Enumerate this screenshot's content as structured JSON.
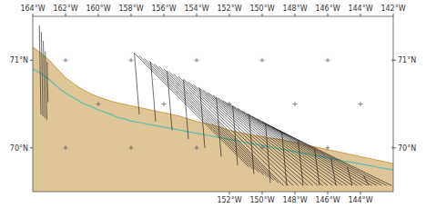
{
  "chart_data": {
    "type": "map",
    "xlim": [
      164.0,
      142.0
    ],
    "ylim": [
      69.5,
      71.5
    ],
    "xticks": [
      {
        "value": 152,
        "label": "152°W"
      },
      {
        "value": 150,
        "label": "150°W"
      },
      {
        "value": 148,
        "label": "148°W"
      },
      {
        "value": 146,
        "label": "146°W"
      },
      {
        "value": 144,
        "label": "144°W"
      }
    ],
    "x2ticks": [
      {
        "value": 164,
        "label": "164°W"
      },
      {
        "value": 162,
        "label": "162°W"
      },
      {
        "value": 160,
        "label": "160°W"
      },
      {
        "value": 158,
        "label": "158°W"
      },
      {
        "value": 156,
        "label": "156°W"
      },
      {
        "value": 154,
        "label": "154°W"
      },
      {
        "value": 152,
        "label": "152°W"
      },
      {
        "value": 150,
        "label": "150°W"
      },
      {
        "value": 148,
        "label": "148°W"
      },
      {
        "value": 146,
        "label": "146°W"
      },
      {
        "value": 144,
        "label": "144°W"
      },
      {
        "value": 142,
        "label": "142°W"
      }
    ],
    "yticks": [
      {
        "value": 70.0,
        "label": "70°N"
      },
      {
        "value": 71.0,
        "label": "71°N"
      }
    ],
    "series": [
      {
        "type": "area",
        "color": "#c8a050",
        "x": [
          164.0,
          163.5,
          163.0,
          162.5,
          162.0,
          161.5,
          161.0,
          160.5,
          160.0,
          159.5,
          159.0,
          158.5,
          158.0,
          157.5,
          157.0,
          156.5,
          156.0,
          155.5,
          155.0,
          154.5,
          154.0,
          153.5,
          153.0,
          152.5,
          152.0,
          151.5,
          151.0,
          150.5,
          150.0,
          149.5,
          149.0,
          148.5,
          148.0,
          147.5,
          147.0,
          146.5,
          146.0,
          145.5,
          145.0,
          144.5,
          144.0,
          143.5,
          143.0,
          142.5,
          142.0
        ],
        "values": [
          71.15,
          71.08,
          71.0,
          70.9,
          70.8,
          70.73,
          70.67,
          70.62,
          70.58,
          70.55,
          70.52,
          70.5,
          70.48,
          70.46,
          70.44,
          70.42,
          70.4,
          70.38,
          70.36,
          70.33,
          70.3,
          70.28,
          70.26,
          70.23,
          70.2,
          70.18,
          70.16,
          70.14,
          70.13,
          70.11,
          70.1,
          70.08,
          70.06,
          70.04,
          70.02,
          70.0,
          69.98,
          69.96,
          69.94,
          69.92,
          69.9,
          69.88,
          69.86,
          69.84,
          69.82
        ]
      },
      {
        "type": "line",
        "color": "#5bbfb0",
        "x": [
          164.0,
          163.5,
          163.0,
          162.7,
          162.4,
          162.1,
          161.8,
          161.5,
          161.2,
          161.0,
          160.7,
          160.4,
          160.1,
          159.8,
          159.5,
          159.2,
          159.0,
          158.7,
          158.4,
          158.1,
          157.8,
          157.5,
          157.2,
          157.0,
          156.7,
          156.4,
          156.1,
          155.8,
          155.5,
          155.2,
          155.0,
          154.7,
          154.4,
          154.1,
          153.8,
          153.5,
          153.2,
          153.0,
          152.7,
          152.4,
          152.1,
          151.8,
          151.5,
          151.2,
          151.0,
          150.7,
          150.4,
          150.1,
          149.8,
          149.5,
          149.2,
          149.0,
          148.7,
          148.4,
          148.1,
          147.8,
          147.5,
          147.2,
          147.0,
          146.7,
          146.4,
          146.1,
          145.8,
          145.5,
          145.2,
          145.0,
          144.7,
          144.4,
          144.1,
          143.8,
          143.5,
          143.2,
          143.0,
          142.7,
          142.4,
          142.1,
          142.0
        ],
        "values": [
          70.9,
          70.85,
          70.78,
          70.73,
          70.68,
          70.64,
          70.6,
          70.57,
          70.54,
          70.51,
          70.49,
          70.47,
          70.44,
          70.42,
          70.4,
          70.38,
          70.36,
          70.34,
          70.33,
          70.31,
          70.3,
          70.29,
          70.28,
          70.27,
          70.26,
          70.25,
          70.24,
          70.23,
          70.22,
          70.21,
          70.2,
          70.19,
          70.18,
          70.17,
          70.16,
          70.15,
          70.14,
          70.13,
          70.12,
          70.11,
          70.1,
          70.09,
          70.08,
          70.07,
          70.06,
          70.05,
          70.04,
          70.03,
          70.02,
          70.01,
          70.0,
          69.99,
          69.98,
          69.97,
          69.96,
          69.95,
          69.94,
          69.93,
          69.92,
          69.91,
          69.9,
          69.89,
          69.88,
          69.87,
          69.86,
          69.85,
          69.84,
          69.83,
          69.82,
          69.81,
          69.8,
          69.79,
          69.78,
          69.77,
          69.76,
          69.75,
          69.75
        ]
      },
      {
        "type": "line",
        "color": "#111111",
        "x": [
          163.6,
          163.5
        ],
        "values": [
          71.4,
          70.38
        ]
      },
      {
        "type": "line",
        "color": "#111111",
        "x": [
          163.48,
          163.38
        ],
        "values": [
          71.32,
          70.36
        ]
      },
      {
        "type": "line",
        "color": "#111111",
        "x": [
          163.36,
          163.26
        ],
        "values": [
          71.22,
          70.34
        ]
      },
      {
        "type": "line",
        "color": "#111111",
        "x": [
          163.24,
          163.14
        ],
        "values": [
          71.1,
          70.32
        ]
      },
      {
        "type": "line",
        "color": "#111111",
        "x": [
          163.12,
          163.07
        ],
        "values": [
          70.98,
          70.52
        ]
      },
      {
        "type": "line",
        "color": "#111111",
        "x": [
          157.8,
          150.8
        ],
        "values": [
          71.08,
          69.78
        ]
      },
      {
        "type": "line",
        "color": "#111111",
        "x": [
          157.5,
          150.5
        ],
        "values": [
          71.05,
          69.75
        ]
      },
      {
        "type": "line",
        "color": "#111111",
        "x": [
          157.2,
          150.2
        ],
        "values": [
          71.02,
          69.72
        ]
      },
      {
        "type": "line",
        "color": "#111111",
        "x": [
          156.9,
          149.9
        ],
        "values": [
          70.99,
          69.69
        ]
      },
      {
        "type": "line",
        "color": "#111111",
        "x": [
          156.6,
          149.6
        ],
        "values": [
          70.96,
          69.66
        ]
      },
      {
        "type": "line",
        "color": "#111111",
        "x": [
          156.3,
          149.3
        ],
        "values": [
          70.93,
          69.63
        ]
      },
      {
        "type": "line",
        "color": "#111111",
        "x": [
          156.0,
          149.0
        ],
        "values": [
          70.9,
          69.6
        ]
      },
      {
        "type": "line",
        "color": "#111111",
        "x": [
          155.7,
          148.7
        ],
        "values": [
          70.87,
          69.57
        ]
      },
      {
        "type": "line",
        "color": "#111111",
        "x": [
          155.4,
          148.4
        ],
        "values": [
          70.84,
          69.57
        ]
      },
      {
        "type": "line",
        "color": "#111111",
        "x": [
          155.1,
          148.1
        ],
        "values": [
          70.81,
          69.57
        ]
      },
      {
        "type": "line",
        "color": "#111111",
        "x": [
          154.8,
          147.8
        ],
        "values": [
          70.78,
          69.57
        ]
      },
      {
        "type": "line",
        "color": "#111111",
        "x": [
          154.5,
          147.5
        ],
        "values": [
          70.75,
          69.57
        ]
      },
      {
        "type": "line",
        "color": "#111111",
        "x": [
          154.2,
          147.2
        ],
        "values": [
          70.72,
          69.57
        ]
      },
      {
        "type": "line",
        "color": "#111111",
        "x": [
          153.9,
          146.9
        ],
        "values": [
          70.69,
          69.57
        ]
      },
      {
        "type": "line",
        "color": "#111111",
        "x": [
          153.6,
          146.6
        ],
        "values": [
          70.66,
          69.57
        ]
      },
      {
        "type": "line",
        "color": "#111111",
        "x": [
          153.3,
          146.3
        ],
        "values": [
          70.63,
          69.57
        ]
      },
      {
        "type": "line",
        "color": "#111111",
        "x": [
          153.0,
          146.0
        ],
        "values": [
          70.6,
          69.57
        ]
      },
      {
        "type": "line",
        "color": "#111111",
        "x": [
          152.7,
          145.7
        ],
        "values": [
          70.57,
          69.57
        ]
      },
      {
        "type": "line",
        "color": "#111111",
        "x": [
          152.4,
          145.4
        ],
        "values": [
          70.54,
          69.57
        ]
      },
      {
        "type": "line",
        "color": "#111111",
        "x": [
          152.1,
          145.1
        ],
        "values": [
          70.51,
          69.57
        ]
      },
      {
        "type": "line",
        "color": "#111111",
        "x": [
          151.8,
          144.8
        ],
        "values": [
          70.48,
          69.57
        ]
      },
      {
        "type": "line",
        "color": "#111111",
        "x": [
          151.5,
          144.5
        ],
        "values": [
          70.45,
          69.57
        ]
      },
      {
        "type": "line",
        "color": "#111111",
        "x": [
          151.2,
          144.2
        ],
        "values": [
          70.42,
          69.57
        ]
      },
      {
        "type": "line",
        "color": "#111111",
        "x": [
          150.9,
          143.9
        ],
        "values": [
          70.39,
          69.57
        ]
      },
      {
        "type": "line",
        "color": "#111111",
        "x": [
          150.6,
          143.6
        ],
        "values": [
          70.36,
          69.57
        ]
      },
      {
        "type": "line",
        "color": "#111111",
        "x": [
          150.3,
          143.3
        ],
        "values": [
          70.33,
          69.57
        ]
      },
      {
        "type": "line",
        "color": "#111111",
        "x": [
          150.0,
          143.0
        ],
        "values": [
          70.3,
          69.57
        ]
      },
      {
        "type": "line",
        "color": "#111111",
        "x": [
          149.7,
          142.7
        ],
        "values": [
          70.27,
          69.57
        ]
      },
      {
        "type": "line",
        "color": "#111111",
        "x": [
          149.4,
          142.4
        ],
        "values": [
          70.24,
          69.57
        ]
      },
      {
        "type": "line",
        "color": "#111111",
        "x": [
          149.1,
          142.1
        ],
        "values": [
          70.21,
          69.57
        ]
      },
      {
        "type": "line",
        "color": "#111111",
        "x": [
          157.8,
          157.5
        ],
        "values": [
          71.08,
          70.38
        ]
      },
      {
        "type": "line",
        "color": "#111111",
        "x": [
          156.8,
          156.5
        ],
        "values": [
          70.98,
          70.3
        ]
      },
      {
        "type": "line",
        "color": "#111111",
        "x": [
          155.8,
          155.5
        ],
        "values": [
          70.88,
          70.2
        ]
      },
      {
        "type": "line",
        "color": "#111111",
        "x": [
          154.8,
          154.5
        ],
        "values": [
          70.78,
          70.1
        ]
      },
      {
        "type": "line",
        "color": "#111111",
        "x": [
          153.8,
          153.5
        ],
        "values": [
          70.68,
          70.0
        ]
      },
      {
        "type": "line",
        "color": "#111111",
        "x": [
          152.8,
          152.5
        ],
        "values": [
          70.58,
          69.9
        ]
      },
      {
        "type": "line",
        "color": "#111111",
        "x": [
          151.8,
          151.5
        ],
        "values": [
          70.48,
          69.8
        ]
      },
      {
        "type": "line",
        "color": "#111111",
        "x": [
          150.8,
          150.5
        ],
        "values": [
          70.38,
          69.7
        ]
      },
      {
        "type": "line",
        "color": "#111111",
        "x": [
          149.8,
          149.5
        ],
        "values": [
          70.28,
          69.6
        ]
      },
      {
        "type": "line",
        "color": "#111111",
        "x": [
          148.8,
          148.5
        ],
        "values": [
          70.18,
          69.57
        ]
      },
      {
        "type": "line",
        "color": "#111111",
        "x": [
          147.8,
          147.5
        ],
        "values": [
          70.08,
          69.57
        ]
      },
      {
        "type": "line",
        "color": "#111111",
        "x": [
          146.8,
          146.5
        ],
        "values": [
          69.98,
          69.57
        ]
      },
      {
        "type": "line",
        "color": "#111111",
        "x": [
          145.8,
          145.5
        ],
        "values": [
          69.88,
          69.57
        ]
      },
      {
        "type": "line",
        "color": "#111111",
        "x": [
          144.8,
          144.5
        ],
        "values": [
          69.78,
          69.57
        ]
      },
      {
        "type": "line",
        "color": "#111111",
        "x": [
          143.8,
          143.5
        ],
        "values": [
          69.68,
          69.57
        ]
      },
      {
        "type": "scatter",
        "marker": "plus",
        "color": "#666666",
        "x": [
          162.0,
          158.0,
          154.0,
          150.0,
          146.0,
          142.0,
          160.0,
          156.0,
          152.0,
          148.0,
          144.0,
          162.0,
          158.0,
          154.0,
          150.0,
          146.0,
          142.0
        ],
        "values": [
          71.0,
          71.0,
          71.0,
          71.0,
          71.0,
          71.0,
          70.5,
          70.5,
          70.5,
          70.5,
          70.5,
          70.0,
          70.0,
          70.0,
          70.0,
          70.0,
          70.0
        ]
      }
    ]
  }
}
